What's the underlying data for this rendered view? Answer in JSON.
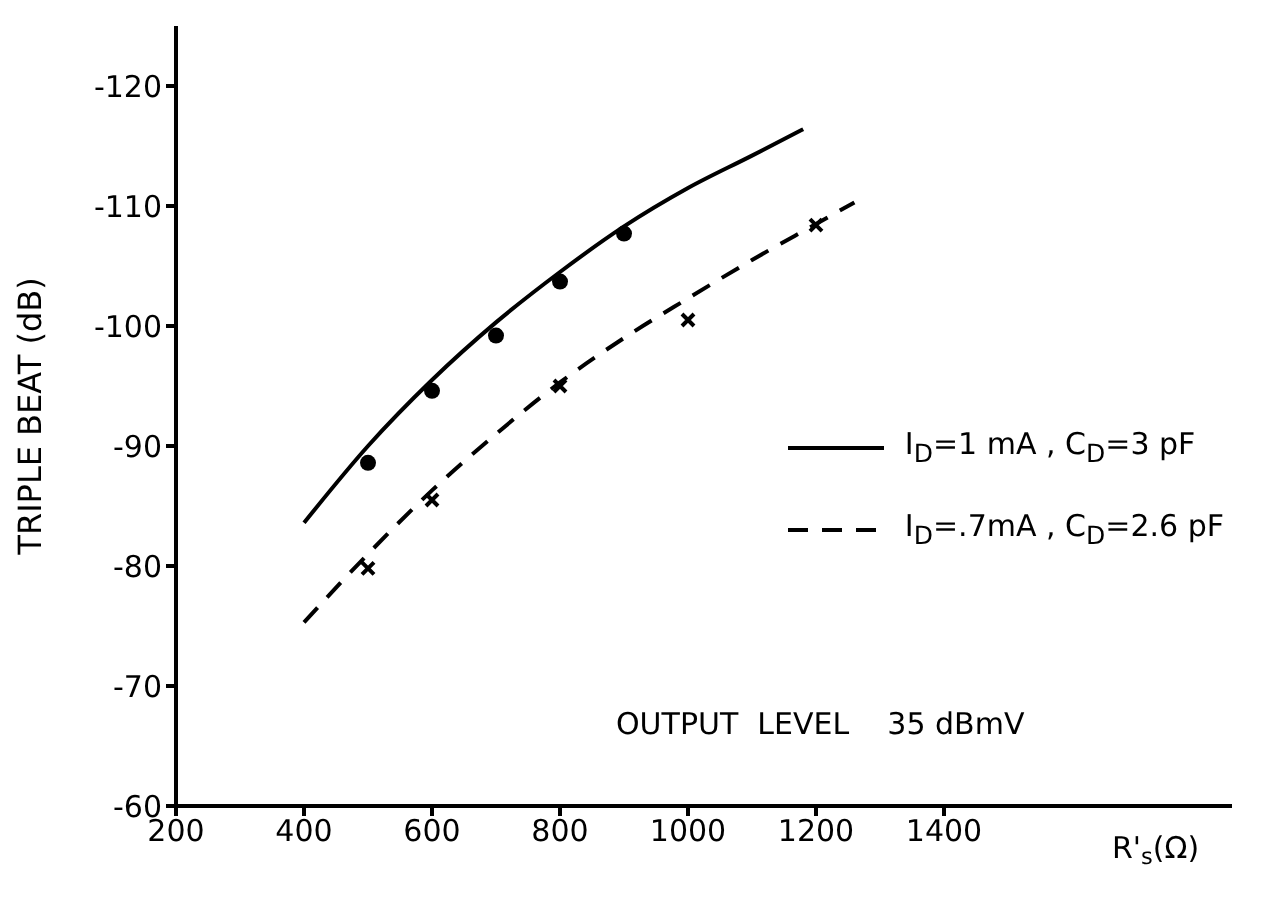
{
  "chart_data": {
    "type": "line",
    "xlabel": "R'$_{s}$(Ω)",
    "ylabel": "TRIPLE  BEAT  (dB)",
    "xlim": [
      200,
      1850
    ],
    "xticks": [
      200,
      400,
      600,
      800,
      1000,
      1200,
      1400
    ],
    "ylim": [
      -60,
      -125
    ],
    "yticks": [
      -60,
      -70,
      -80,
      -90,
      -100,
      -110,
      -120
    ],
    "grid": false,
    "legend": "right",
    "marker": "none",
    "annotations": [
      "OUTPUT  LEVEL    35 dBmV"
    ],
    "series": [
      {
        "name": "I$_{D}$=1 mA  ,  C$_{D}$=3 pF",
        "color": "#000000",
        "line_style": "solid",
        "x": [
          400,
          500,
          600,
          700,
          800,
          900,
          1000,
          1100,
          1180
        ],
        "values": [
          -83.6,
          -90,
          -95.5,
          -100.3,
          -104.5,
          -108.3,
          -111.5,
          -114.2,
          -116.4
        ]
      },
      {
        "name": "I$_{D}$=.7mA  ,  C$_{D}$=2.6 pF",
        "color": "#000000",
        "line_style": "dashed",
        "x": [
          400,
          500,
          600,
          700,
          800,
          900,
          1000,
          1100,
          1200,
          1260
        ],
        "values": [
          -75.3,
          -81,
          -86.3,
          -91,
          -95.3,
          -99,
          -102.3,
          -105.5,
          -108.5,
          -110.3
        ]
      },
      {
        "type": "scatter",
        "color": "#000000",
        "marker": "circle",
        "x": [
          500,
          600,
          700,
          800,
          900
        ],
        "values": [
          -88.6,
          -94.6,
          -99.2,
          -103.7,
          -107.7
        ]
      },
      {
        "type": "scatter",
        "color": "#000000",
        "marker": "cross",
        "x": [
          500,
          600,
          800,
          1000,
          1200
        ],
        "values": [
          -79.8,
          -85.5,
          -95.0,
          -100.5,
          -108.4
        ]
      }
    ]
  }
}
